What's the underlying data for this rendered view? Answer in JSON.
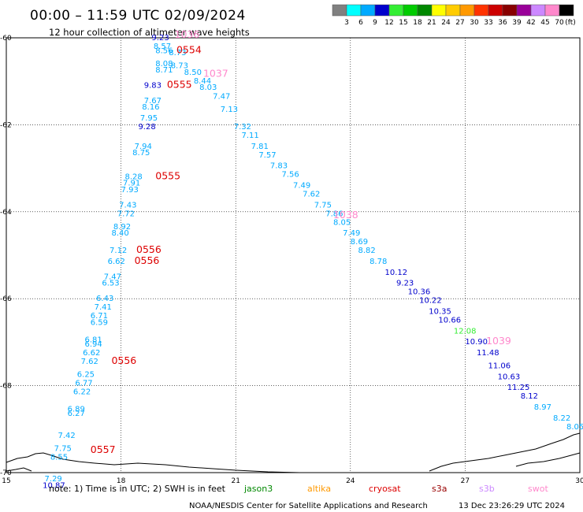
{
  "header": {
    "title": "00:00 – 11:59 UTC 02/09/2024",
    "subtitle": "12 hour collection of altimeter wave heights"
  },
  "legend": {
    "unit": "(ft)",
    "bins": [
      {
        "label": "3",
        "color": "#808080"
      },
      {
        "label": "6",
        "color": "#00ffff"
      },
      {
        "label": "9",
        "color": "#00aaff"
      },
      {
        "label": "12",
        "color": "#0000cc"
      },
      {
        "label": "15",
        "color": "#33ee33"
      },
      {
        "label": "18",
        "color": "#00cc00"
      },
      {
        "label": "21",
        "color": "#008800"
      },
      {
        "label": "24",
        "color": "#ffff00"
      },
      {
        "label": "27",
        "color": "#ffcc00"
      },
      {
        "label": "30",
        "color": "#ff9900"
      },
      {
        "label": "33",
        "color": "#ff3300"
      },
      {
        "label": "36",
        "color": "#cc0000"
      },
      {
        "label": "39",
        "color": "#880000"
      },
      {
        "label": "42",
        "color": "#990099"
      },
      {
        "label": "45",
        "color": "#cc88ff"
      },
      {
        "label": "70",
        "color": "#ff88cc"
      },
      {
        "label": "",
        "color": "#000000"
      }
    ]
  },
  "map": {
    "lon_range": [
      15,
      30
    ],
    "lat_range": [
      -70,
      -60
    ],
    "x_ticks": [
      "15",
      "18",
      "21",
      "24",
      "27",
      "30"
    ],
    "y_ticks": [
      "-60",
      "-62",
      "-64",
      "-66",
      "-68",
      "-70"
    ]
  },
  "chart_data": {
    "type": "scatter",
    "x_range": [
      15,
      30
    ],
    "y_range": [
      -70,
      -60
    ],
    "tracks": [
      {
        "name": "cryosat",
        "color": "#00aaff",
        "values": [
          {
            "x": 18.8,
            "y": -60.05,
            "v": "9.23",
            "c": "#0000cc"
          },
          {
            "x": 18.85,
            "y": -60.25,
            "v": "8.57"
          },
          {
            "x": 18.9,
            "y": -60.35,
            "v": "8.56"
          },
          {
            "x": 19.25,
            "y": -60.4,
            "v": "8.73"
          },
          {
            "x": 18.9,
            "y": -60.65,
            "v": "8.08"
          },
          {
            "x": 19.3,
            "y": -60.7,
            "v": "8.73"
          },
          {
            "x": 18.9,
            "y": -60.8,
            "v": "8.71"
          },
          {
            "x": 19.65,
            "y": -60.85,
            "v": "8.50"
          },
          {
            "x": 19.9,
            "y": -61.05,
            "v": "8.44"
          },
          {
            "x": 18.6,
            "y": -61.15,
            "v": "9.83",
            "c": "#0000cc"
          },
          {
            "x": 20.05,
            "y": -61.2,
            "v": "8.03"
          },
          {
            "x": 18.6,
            "y": -61.5,
            "v": "7.67"
          },
          {
            "x": 20.4,
            "y": -61.4,
            "v": "7.47"
          },
          {
            "x": 18.55,
            "y": -61.65,
            "v": "8.16"
          },
          {
            "x": 20.6,
            "y": -61.7,
            "v": "7.13"
          },
          {
            "x": 18.5,
            "y": -61.9,
            "v": "7.95"
          },
          {
            "x": 18.45,
            "y": -62.1,
            "v": "9.28",
            "c": "#0000cc"
          },
          {
            "x": 20.95,
            "y": -62.1,
            "v": "7.32"
          },
          {
            "x": 21.15,
            "y": -62.3,
            "v": "7.11"
          },
          {
            "x": 21.4,
            "y": -62.55,
            "v": "7.81"
          },
          {
            "x": 18.35,
            "y": -62.55,
            "v": "7.94"
          },
          {
            "x": 18.3,
            "y": -62.7,
            "v": "8.75"
          },
          {
            "x": 21.6,
            "y": -62.75,
            "v": "7.57"
          },
          {
            "x": 21.9,
            "y": -63.0,
            "v": "7.83"
          },
          {
            "x": 22.2,
            "y": -63.2,
            "v": "7.56"
          },
          {
            "x": 18.1,
            "y": -63.25,
            "v": "8.28"
          },
          {
            "x": 22.5,
            "y": -63.45,
            "v": "7.49"
          },
          {
            "x": 18.05,
            "y": -63.4,
            "v": "7.91"
          },
          {
            "x": 18.0,
            "y": -63.55,
            "v": "7.93"
          },
          {
            "x": 22.75,
            "y": -63.65,
            "v": "7.62"
          },
          {
            "x": 17.95,
            "y": -63.9,
            "v": "7.43"
          },
          {
            "x": 23.05,
            "y": -63.9,
            "v": "7.75"
          },
          {
            "x": 17.9,
            "y": -64.1,
            "v": "7.72"
          },
          {
            "x": 23.35,
            "y": -64.1,
            "v": "7.86"
          },
          {
            "x": 23.55,
            "y": -64.3,
            "v": "8.05"
          },
          {
            "x": 17.8,
            "y": -64.4,
            "v": "8.92"
          },
          {
            "x": 17.75,
            "y": -64.55,
            "v": "8.40"
          },
          {
            "x": 23.8,
            "y": -64.55,
            "v": "7.49"
          },
          {
            "x": 24.0,
            "y": -64.75,
            "v": "8.69"
          },
          {
            "x": 17.7,
            "y": -64.95,
            "v": "7.12"
          },
          {
            "x": 24.2,
            "y": -64.95,
            "v": "8.82"
          },
          {
            "x": 17.65,
            "y": -65.2,
            "v": "6.62"
          },
          {
            "x": 24.5,
            "y": -65.2,
            "v": "8.78"
          },
          {
            "x": 17.55,
            "y": -65.55,
            "v": "7.47"
          },
          {
            "x": 17.5,
            "y": -65.7,
            "v": "6.53"
          },
          {
            "x": 24.9,
            "y": -65.45,
            "v": "10.12",
            "c": "#0000cc"
          },
          {
            "x": 25.2,
            "y": -65.7,
            "v": "9.23",
            "c": "#0000cc"
          },
          {
            "x": 17.35,
            "y": -66.05,
            "v": "6.43"
          },
          {
            "x": 25.5,
            "y": -65.9,
            "v": "10.36",
            "c": "#0000cc"
          },
          {
            "x": 17.3,
            "y": -66.25,
            "v": "7.41"
          },
          {
            "x": 25.8,
            "y": -66.1,
            "v": "10.22",
            "c": "#0000cc"
          },
          {
            "x": 17.2,
            "y": -66.45,
            "v": "6.71"
          },
          {
            "x": 17.2,
            "y": -66.6,
            "v": "6.59"
          },
          {
            "x": 26.05,
            "y": -66.35,
            "v": "10.35",
            "c": "#0000cc"
          },
          {
            "x": 26.3,
            "y": -66.55,
            "v": "10.66",
            "c": "#0000cc"
          },
          {
            "x": 26.7,
            "y": -66.8,
            "v": "12.08",
            "c": "#33ee33"
          },
          {
            "x": 17.05,
            "y": -67.0,
            "v": "6.81"
          },
          {
            "x": 17.05,
            "y": -67.1,
            "v": "6.94"
          },
          {
            "x": 17.0,
            "y": -67.3,
            "v": "6.62"
          },
          {
            "x": 27.0,
            "y": -67.05,
            "v": "10.90",
            "c": "#0000cc"
          },
          {
            "x": 16.95,
            "y": -67.5,
            "v": "7.62"
          },
          {
            "x": 27.3,
            "y": -67.3,
            "v": "11.48",
            "c": "#0000cc"
          },
          {
            "x": 16.85,
            "y": -67.8,
            "v": "6.25"
          },
          {
            "x": 27.6,
            "y": -67.6,
            "v": "11.06",
            "c": "#0000cc"
          },
          {
            "x": 16.8,
            "y": -68.0,
            "v": "6.77"
          },
          {
            "x": 27.85,
            "y": -67.85,
            "v": "10.63",
            "c": "#0000cc"
          },
          {
            "x": 16.75,
            "y": -68.2,
            "v": "6.22"
          },
          {
            "x": 28.1,
            "y": -68.1,
            "v": "11.25",
            "c": "#0000cc"
          },
          {
            "x": 28.45,
            "y": -68.3,
            "v": "8.12",
            "c": "#0000cc"
          },
          {
            "x": 16.6,
            "y": -68.6,
            "v": "6.89"
          },
          {
            "x": 16.6,
            "y": -68.7,
            "v": "6.27"
          },
          {
            "x": 28.8,
            "y": -68.55,
            "v": "8.97"
          },
          {
            "x": 29.3,
            "y": -68.8,
            "v": "8.22"
          },
          {
            "x": 29.65,
            "y": -69.0,
            "v": "8.05"
          },
          {
            "x": 16.35,
            "y": -69.2,
            "v": "7.42"
          },
          {
            "x": 16.25,
            "y": -69.5,
            "v": "7.75"
          },
          {
            "x": 16.15,
            "y": -69.7,
            "v": "8.55"
          },
          {
            "x": 16.0,
            "y": -70.2,
            "v": "7.29"
          },
          {
            "x": 15.95,
            "y": -70.35,
            "v": "10.87",
            "c": "#0000cc"
          }
        ]
      }
    ],
    "pass_labels": [
      {
        "x": 19.4,
        "y": -60.0,
        "v": "1036",
        "c": "#ff88cc"
      },
      {
        "x": 19.45,
        "y": -60.35,
        "v": "0554",
        "c": "#dd0000"
      },
      {
        "x": 19.2,
        "y": -61.15,
        "v": "0555",
        "c": "#dd0000"
      },
      {
        "x": 20.15,
        "y": -60.9,
        "v": "1037",
        "c": "#ff88cc"
      },
      {
        "x": 18.9,
        "y": -63.25,
        "v": "0555",
        "c": "#dd0000"
      },
      {
        "x": 23.55,
        "y": -64.15,
        "v": "1038",
        "c": "#ff88cc"
      },
      {
        "x": 18.4,
        "y": -64.95,
        "v": "0556",
        "c": "#dd0000"
      },
      {
        "x": 18.35,
        "y": -65.2,
        "v": "0556",
        "c": "#dd0000"
      },
      {
        "x": 27.55,
        "y": -67.05,
        "v": "1039",
        "c": "#ff88cc"
      },
      {
        "x": 17.75,
        "y": -67.5,
        "v": "0556",
        "c": "#dd0000"
      },
      {
        "x": 17.2,
        "y": -69.55,
        "v": "0557",
        "c": "#dd0000"
      }
    ]
  },
  "footer": {
    "note": "note: 1) Time is in UTC; 2) SWH is in feet",
    "satellites": [
      {
        "label": "jason3",
        "color": "#008800"
      },
      {
        "label": "altika",
        "color": "#ff9900"
      },
      {
        "label": "cryosat",
        "color": "#dd0000"
      },
      {
        "label": "s3a",
        "color": "#990000"
      },
      {
        "label": "s3b",
        "color": "#cc88ff"
      },
      {
        "label": "swot",
        "color": "#ff88cc"
      }
    ],
    "credit": "NOAA/NESDIS Center for Satellite Applications and Research",
    "timestamp": "13 Dec 23:26:29 UTC 2024"
  }
}
